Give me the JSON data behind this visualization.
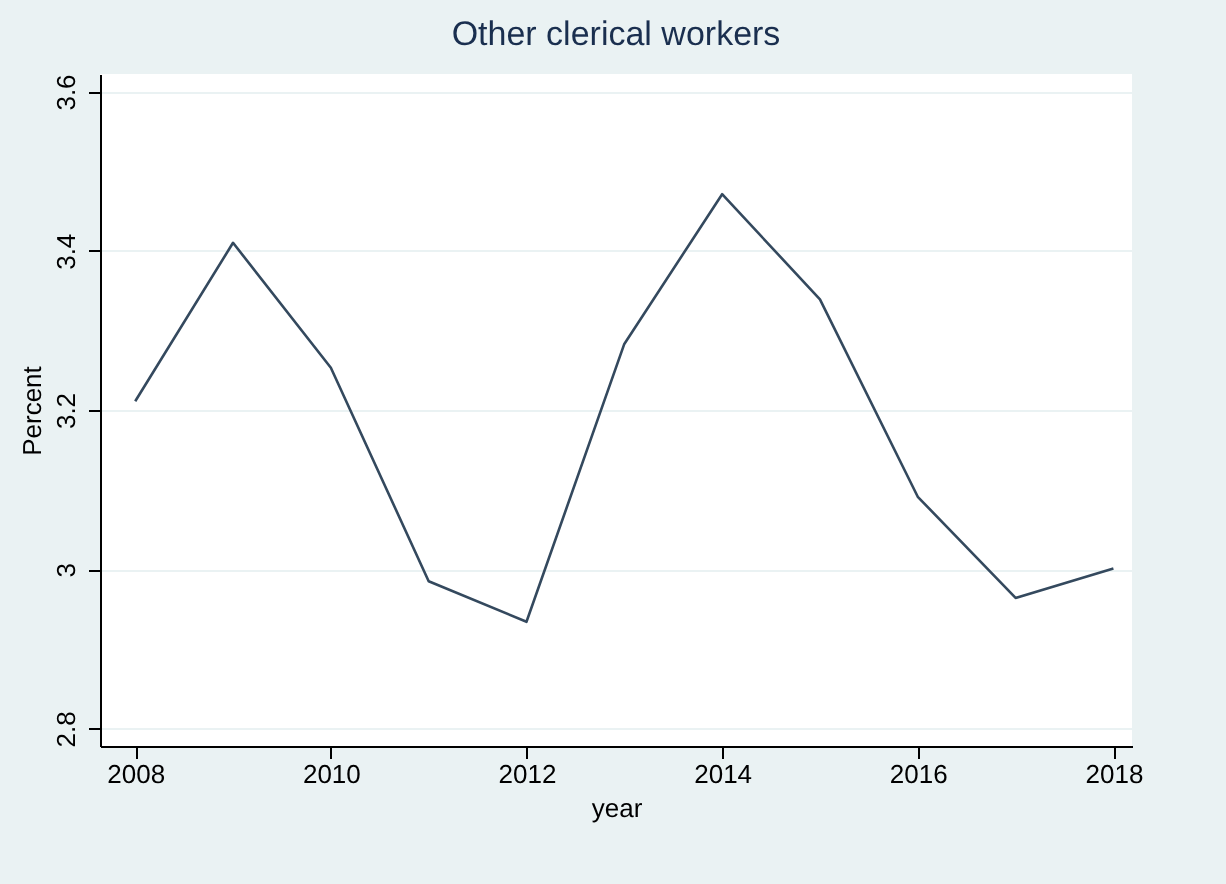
{
  "chart_data": {
    "type": "line",
    "title": "Other clerical workers",
    "xlabel": "year",
    "ylabel": "Percent",
    "x": [
      2008,
      2009,
      2010,
      2011,
      2012,
      2013,
      2014,
      2015,
      2016,
      2017,
      2018
    ],
    "series": [
      {
        "color": "#34495e",
        "values": [
          3.211,
          3.41,
          3.253,
          2.985,
          2.934,
          3.283,
          3.471,
          3.339,
          3.091,
          2.964,
          3.001
        ]
      }
    ],
    "xlim": [
      2007.64,
      2018.19
    ],
    "xticks": [
      2008,
      2010,
      2012,
      2014,
      2016,
      2018
    ],
    "ylim": [
      2.778,
      3.622
    ],
    "yticks": [
      2.8,
      3,
      3.2,
      3.4,
      3.6
    ],
    "grid": "y",
    "marker": "none",
    "line_style": "solid"
  }
}
